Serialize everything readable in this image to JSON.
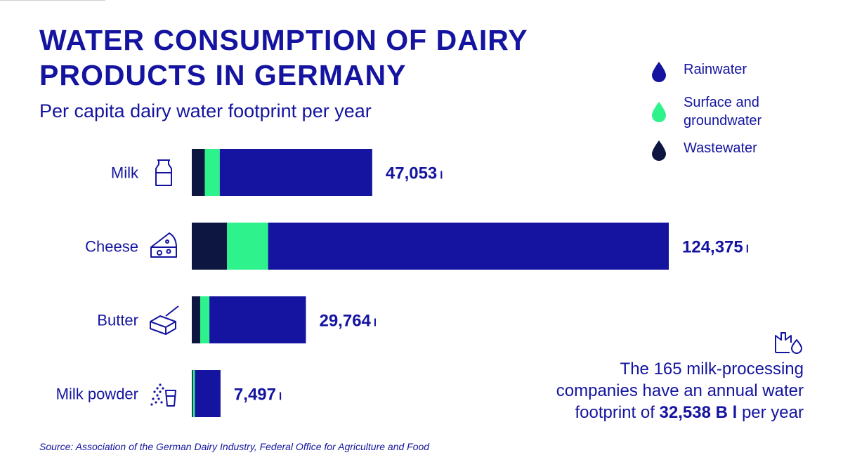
{
  "title": "WATER CONSUMPTION OF DAIRY PRODUCTS IN GERMANY",
  "subtitle": "Per capita dairy water footprint per year",
  "legend": [
    {
      "label": "Rainwater",
      "color": "#1414a0"
    },
    {
      "label": "Surface and groundwater",
      "color": "#2ef28c"
    },
    {
      "label": "Wastewater",
      "color": "#0c1640"
    }
  ],
  "colors": {
    "rainwater": "#1414a0",
    "surface": "#2ef28c",
    "wastewater": "#0c1640"
  },
  "note": {
    "line_before": "The 165 milk-processing companies have an annual water footprint of",
    "value": "32,538 B l",
    "line_after": "per year",
    "icon": "factory-water-icon"
  },
  "source": "Source: Association of the German Dairy Industry, Federal Office for Agriculture and Food",
  "chart_data": {
    "type": "bar",
    "orientation": "horizontal",
    "stacked": true,
    "categories": [
      "Milk",
      "Cheese",
      "Butter",
      "Milk powder"
    ],
    "category_icons": [
      "milk-can-icon",
      "cheese-icon",
      "butter-icon",
      "milk-powder-icon"
    ],
    "totals": [
      47053,
      124375,
      29764,
      7497
    ],
    "total_labels": [
      "47,053",
      "124,375",
      "29,764",
      "7,497"
    ],
    "unit": "l",
    "series": [
      {
        "name": "Wastewater",
        "values": [
          3400,
          9200,
          2200,
          300
        ]
      },
      {
        "name": "Surface and groundwater",
        "values": [
          3900,
          10700,
          2400,
          500
        ]
      },
      {
        "name": "Rainwater",
        "values": [
          39753,
          104475,
          25164,
          6697
        ]
      }
    ],
    "xlim": [
      0,
      124375
    ],
    "grid": false,
    "legend_position": "top-right"
  }
}
